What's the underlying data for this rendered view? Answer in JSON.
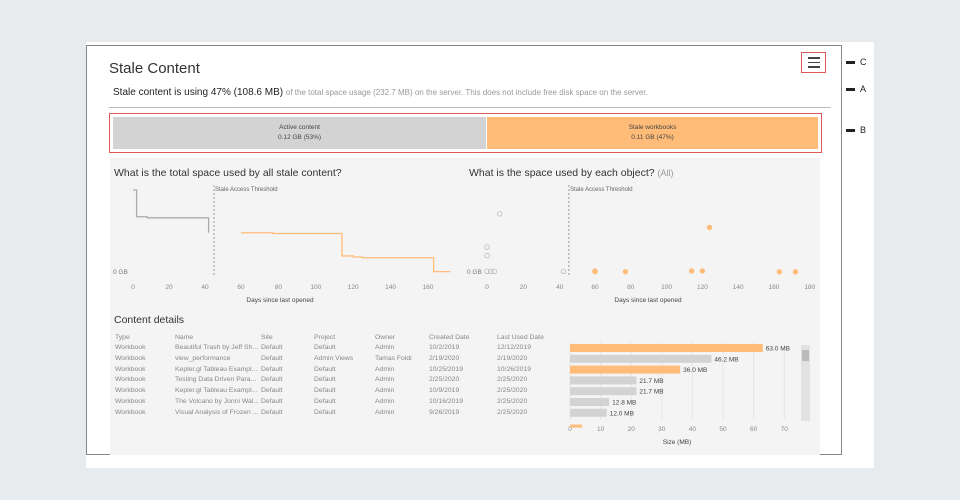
{
  "title": "Stale Content",
  "summary": {
    "bold": "Stale content is using 47% (108.6 MB)",
    "rest": "of the total space usage (232.7 MB) on the server. This does not include free disk space on the server."
  },
  "breakdown": [
    {
      "label": "Active content",
      "value": "0.12 GB (53%)",
      "fraction": 0.53,
      "color": "#d3d3d3"
    },
    {
      "label": "Stale workbooks",
      "value": "0.11 GB (47%)",
      "fraction": 0.47,
      "color": "#ffbc79"
    }
  ],
  "annotations": {
    "c": "C",
    "a": "A",
    "b": "B"
  },
  "charts": {
    "total": {
      "title": "What is the total space used by all stale content?",
      "threshold_label": "Stale  Access Threshold",
      "ylabel0": "0 GB",
      "xlabel": "Days since last opened"
    },
    "objects": {
      "title": "What is the space used by each object?",
      "filter": "(All)",
      "threshold_label": "Stale  Access Threshold",
      "ylabel0": "0 GB",
      "xlabel": "Days since last opened"
    }
  },
  "chart_data": [
    {
      "type": "line",
      "title": "What is the total space used by all stale content?",
      "xlabel": "Days since last opened",
      "ylabel": "GB",
      "threshold_day": 45,
      "series": [
        {
          "name": "Active",
          "color": "#aaaaaa",
          "points": [
            [
              0,
              0.23
            ],
            [
              2,
              0.23
            ],
            [
              2,
              0.155
            ],
            [
              8,
              0.155
            ],
            [
              8,
              0.152
            ],
            [
              42,
              0.152
            ],
            [
              42,
              0.11
            ]
          ]
        },
        {
          "name": "Stale",
          "color": "#ffbc79",
          "points": [
            [
              60,
              0.11
            ],
            [
              77,
              0.11
            ],
            [
              77,
              0.108
            ],
            [
              114,
              0.108
            ],
            [
              114,
              0.045
            ],
            [
              120,
              0.045
            ],
            [
              120,
              0.042
            ],
            [
              125,
              0.042
            ],
            [
              125,
              0.04
            ],
            [
              163,
              0.04
            ],
            [
              163,
              0.001
            ],
            [
              172,
              0.001
            ]
          ]
        }
      ],
      "xticks_left": [
        0,
        20,
        40
      ],
      "xticks_right": [
        60,
        80,
        100,
        120,
        140,
        160
      ]
    },
    {
      "type": "scatter",
      "title": "What is the space used by each object?",
      "xlabel": "Days since last opened",
      "threshold_day": 45,
      "series": [
        {
          "name": "Active",
          "color": "#bbbbbb",
          "points": [
            [
              7,
              0.163
            ],
            [
              0,
              0.07
            ],
            [
              0,
              0.046
            ],
            [
              0,
              0.002
            ],
            [
              2,
              0.002
            ],
            [
              4,
              0.002
            ],
            [
              42,
              0.002
            ]
          ]
        },
        {
          "name": "Stale",
          "color": "#ffbc79",
          "points": [
            [
              124,
              0.125
            ],
            [
              60,
              0.003
            ],
            [
              60,
              0.001
            ],
            [
              77,
              0.001
            ],
            [
              114,
              0.003
            ],
            [
              120,
              0.003
            ],
            [
              163,
              0.0005
            ],
            [
              172,
              0.0005
            ]
          ]
        }
      ],
      "xticks_left": [
        0,
        20,
        40
      ],
      "xticks_right": [
        60,
        80,
        100,
        120,
        140,
        160,
        180
      ]
    },
    {
      "type": "bar",
      "xlabel": "Size (MB)",
      "xlim": [
        0,
        70
      ],
      "xticks": [
        0,
        10,
        20,
        30,
        40,
        50,
        60,
        70
      ],
      "values": [
        63.0,
        46.2,
        36.0,
        21.7,
        21.7,
        12.8,
        12.0,
        4.0
      ],
      "labels": [
        "63.0 MB",
        "46.2 MB",
        "36.0 MB",
        "21.7 MB",
        "21.7 MB",
        "12.8 MB",
        "12.0 MB",
        ""
      ],
      "colors": [
        "#ffbc79",
        "#d3d3d3",
        "#ffbc79",
        "#d3d3d3",
        "#d3d3d3",
        "#d3d3d3",
        "#d3d3d3",
        "#ffbc79"
      ]
    }
  ],
  "details": {
    "title": "Content details",
    "columns": [
      "Type",
      "Name",
      "Site",
      "Project",
      "Owner",
      "Created Date",
      "Last Used Date"
    ],
    "rows": [
      [
        "Workbook",
        "Beautiful Trash by Jeff Sh...",
        "Default",
        "Default",
        "Admin",
        "10/2/2019",
        "12/12/2019"
      ],
      [
        "Workbook",
        "view_performance",
        "Default",
        "Admin Views",
        "Tamas Foldi",
        "2/19/2020",
        "2/19/2020"
      ],
      [
        "Workbook",
        "Kepler.gl Tableau Exampl...",
        "Default",
        "Default",
        "Admin",
        "10/25/2019",
        "10/26/2019"
      ],
      [
        "Workbook",
        "Testing Data Driven Para...",
        "Default",
        "Default",
        "Admin",
        "2/25/2020",
        "2/25/2020"
      ],
      [
        "Workbook",
        "Kepler.gl Tableau Exampl...",
        "Default",
        "Default",
        "Admin",
        "10/9/2019",
        "2/25/2020"
      ],
      [
        "Workbook",
        "The Volcano by Jonni Wal...",
        "Default",
        "Default",
        "Admin",
        "10/16/2019",
        "2/25/2020"
      ],
      [
        "Workbook",
        "Visual Analysis of Frozen ...",
        "Default",
        "Default",
        "Admin",
        "9/26/2019",
        "2/25/2020"
      ]
    ]
  }
}
